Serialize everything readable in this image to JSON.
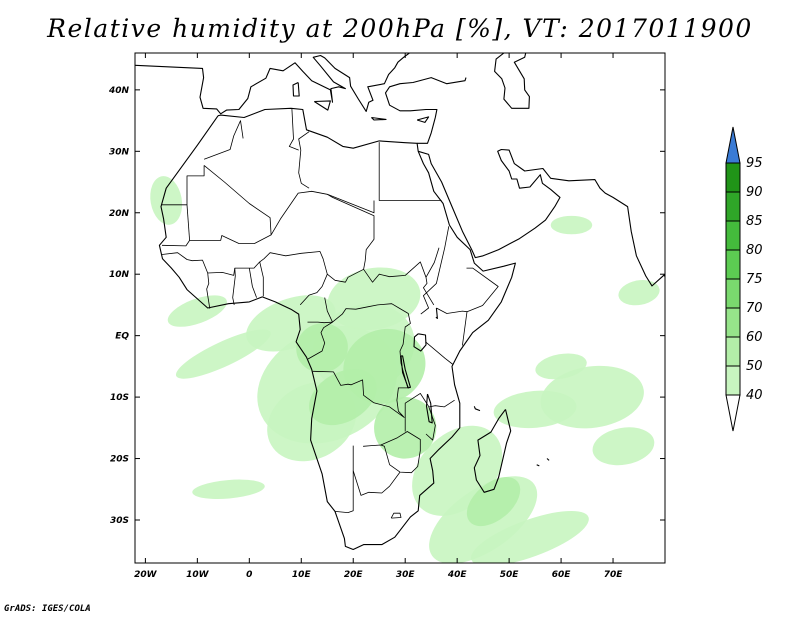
{
  "title": "Relative humidity at 200hPa [%], VT: 2017011900",
  "credit": "GrADS: IGES/COLA",
  "map": {
    "lon_range": [
      -22,
      80
    ],
    "lat_range": [
      -37,
      46
    ],
    "lon_ticks": [
      {
        "lon": -20,
        "label": "20W"
      },
      {
        "lon": -10,
        "label": "10W"
      },
      {
        "lon": 0,
        "label": "0"
      },
      {
        "lon": 10,
        "label": "10E"
      },
      {
        "lon": 20,
        "label": "20E"
      },
      {
        "lon": 30,
        "label": "30E"
      },
      {
        "lon": 40,
        "label": "40E"
      },
      {
        "lon": 50,
        "label": "50E"
      },
      {
        "lon": 60,
        "label": "60E"
      },
      {
        "lon": 70,
        "label": "70E"
      }
    ],
    "lat_ticks": [
      {
        "lat": 40,
        "label": "40N"
      },
      {
        "lat": 30,
        "label": "30N"
      },
      {
        "lat": 20,
        "label": "20N"
      },
      {
        "lat": 10,
        "label": "10N"
      },
      {
        "lat": 0,
        "label": "EQ"
      },
      {
        "lat": -10,
        "label": "10S"
      },
      {
        "lat": -20,
        "label": "20S"
      },
      {
        "lat": -30,
        "label": "30S"
      }
    ]
  },
  "colorbar": {
    "levels": [
      "40",
      "50",
      "60",
      "70",
      "75",
      "80",
      "85",
      "90",
      "95"
    ],
    "colors": [
      "#f0fff0",
      "#c8f5c0",
      "#b3eea8",
      "#96e48a",
      "#7ad96e",
      "#5ccc52",
      "#44bb3c",
      "#2fa628",
      "#209418"
    ],
    "over_color": "#3a7bd5",
    "under_color": "#ffffff"
  },
  "colors": {
    "coast": "#000000",
    "background": "#ffffff"
  }
}
